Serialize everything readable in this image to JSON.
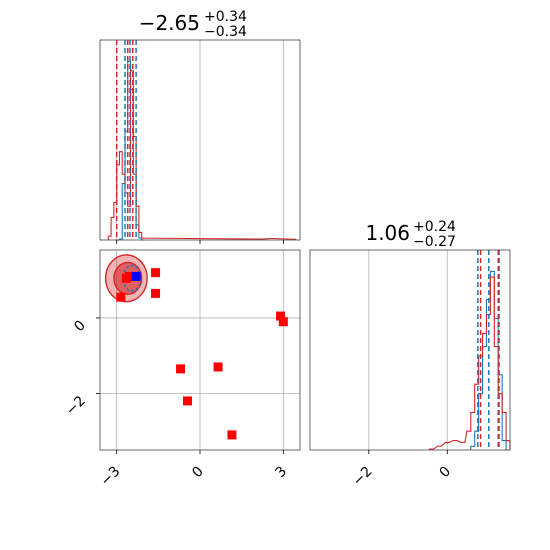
{
  "colors": {
    "blue": "#1f77b4",
    "red": "#d62728",
    "marker": "#ff0000",
    "truth": "#0000ff"
  },
  "chart_data": [
    {
      "type": "histogram",
      "panel": "top-left",
      "title": {
        "base": "−2.65",
        "sup": "+0.34",
        "sub": "−0.34"
      },
      "xlim": [
        -3.6,
        3.6
      ],
      "grid": true,
      "xticks": [
        -3,
        0,
        3
      ],
      "series": [
        {
          "name": "",
          "color": "blue",
          "bins": [
            [
              -2.95,
              0
            ],
            [
              -2.85,
              0.005
            ],
            [
              -2.75,
              0.3
            ],
            [
              -2.65,
              0.58
            ],
            [
              -2.55,
              0.95
            ],
            [
              -2.45,
              0.8
            ],
            [
              -2.35,
              0.35
            ],
            [
              -2.25,
              0.08
            ],
            [
              -2.15,
              0.01
            ],
            [
              -2.05,
              0
            ]
          ]
        },
        {
          "name": "",
          "color": "red",
          "bins": [
            [
              -3.25,
              0.02
            ],
            [
              -3.15,
              0.12
            ],
            [
              -3.05,
              0.2
            ],
            [
              -2.95,
              0.4
            ],
            [
              -2.85,
              0.47
            ],
            [
              -2.75,
              0.35
            ],
            [
              -2.65,
              0.25
            ],
            [
              -2.55,
              0.18
            ],
            [
              -2.45,
              0.9
            ],
            [
              -2.35,
              0.55
            ],
            [
              -2.25,
              0.18
            ],
            [
              -2.15,
              0.04
            ],
            [
              -2.05,
              0.01
            ],
            [
              2.2,
              0.005
            ],
            [
              2.6,
              0.008
            ],
            [
              3.0,
              0.006
            ],
            [
              3.4,
              0.004
            ]
          ]
        }
      ],
      "vlines": [
        {
          "x": -3.0,
          "color": "red"
        },
        {
          "x": -2.6,
          "color": "red"
        },
        {
          "x": -2.42,
          "color": "red"
        },
        {
          "x": -2.7,
          "color": "blue"
        },
        {
          "x": -2.52,
          "color": "blue"
        },
        {
          "x": -2.3,
          "color": "blue"
        }
      ]
    },
    {
      "type": "scatter",
      "panel": "bottom-left",
      "xlim": [
        -3.6,
        3.6
      ],
      "ylim": [
        -3.5,
        1.8
      ],
      "grid": true,
      "xticks": [
        -3,
        0,
        3
      ],
      "yticks": [
        -2,
        0
      ],
      "xticklabels": [
        "−3",
        "0",
        "3"
      ],
      "yticklabels": [
        "−2",
        "0"
      ],
      "markers": [
        {
          "x": -2.85,
          "y": 0.55,
          "color": "marker"
        },
        {
          "x": -2.65,
          "y": 1.05,
          "color": "marker"
        },
        {
          "x": -2.55,
          "y": 1.1,
          "color": "marker"
        },
        {
          "x": -2.3,
          "y": 1.1,
          "color": "marker"
        },
        {
          "x": -1.6,
          "y": 1.2,
          "color": "marker"
        },
        {
          "x": -1.6,
          "y": 0.65,
          "color": "marker"
        },
        {
          "x": -0.7,
          "y": -1.35,
          "color": "marker"
        },
        {
          "x": -0.45,
          "y": -2.2,
          "color": "marker"
        },
        {
          "x": 0.65,
          "y": -1.3,
          "color": "marker"
        },
        {
          "x": 1.15,
          "y": -3.1,
          "color": "marker"
        },
        {
          "x": 2.9,
          "y": 0.05,
          "color": "marker"
        },
        {
          "x": 3.0,
          "y": -0.1,
          "color": "marker"
        },
        {
          "x": -2.3,
          "y": 1.1,
          "color": "truth"
        }
      ],
      "contours": [
        {
          "color": "red",
          "cx": -2.65,
          "cy": 1.05,
          "rx": 0.75,
          "ry": 0.62,
          "fill": 0.35
        },
        {
          "color": "red",
          "cx": -2.6,
          "cy": 1.05,
          "rx": 0.5,
          "ry": 0.42,
          "fill": 0.6
        },
        {
          "color": "blue",
          "cx": -2.45,
          "cy": 1.05,
          "rx": 0.32,
          "ry": 0.34,
          "fill": 0.0
        }
      ]
    },
    {
      "type": "histogram",
      "panel": "bottom-right",
      "title": {
        "base": "1.06",
        "sup": "+0.24",
        "sub": "−0.27"
      },
      "xlim": [
        -3.5,
        1.6
      ],
      "grid": true,
      "xticks": [
        -2,
        0
      ],
      "xticklabels": [
        "−2",
        "0"
      ],
      "series": [
        {
          "name": "",
          "color": "blue",
          "bins": [
            [
              0.65,
              0.02
            ],
            [
              0.75,
              0.1
            ],
            [
              0.85,
              0.3
            ],
            [
              0.95,
              0.55
            ],
            [
              1.05,
              0.8
            ],
            [
              1.15,
              0.95
            ],
            [
              1.25,
              0.7
            ],
            [
              1.35,
              0.4
            ],
            [
              1.45,
              0.05
            ],
            [
              1.55,
              0
            ]
          ]
        },
        {
          "name": "",
          "color": "red",
          "bins": [
            [
              -0.4,
              0.005
            ],
            [
              -0.2,
              0.02
            ],
            [
              0.0,
              0.04
            ],
            [
              0.2,
              0.05
            ],
            [
              0.4,
              0.04
            ],
            [
              0.55,
              0.1
            ],
            [
              0.65,
              0.2
            ],
            [
              0.75,
              0.35
            ],
            [
              0.85,
              0.5
            ],
            [
              0.95,
              0.62
            ],
            [
              1.05,
              0.72
            ],
            [
              1.15,
              0.92
            ],
            [
              1.25,
              0.55
            ],
            [
              1.35,
              0.3
            ],
            [
              1.45,
              0.2
            ],
            [
              1.55,
              0.05
            ]
          ]
        }
      ],
      "vlines": [
        {
          "x": 0.78,
          "color": "blue"
        },
        {
          "x": 1.06,
          "color": "blue"
        },
        {
          "x": 1.3,
          "color": "blue"
        },
        {
          "x": 0.85,
          "color": "red"
        },
        {
          "x": 1.32,
          "color": "red"
        }
      ]
    }
  ],
  "labels": {
    "top_title_base": "−2.65",
    "top_title_sup": "+0.34",
    "top_title_sub": "−0.34",
    "right_title_base": "1.06",
    "right_title_sup": "+0.24",
    "right_title_sub": "−0.27",
    "bl_x_ticks": [
      "−3",
      "0",
      "3"
    ],
    "bl_y_ticks": [
      "−2",
      "0"
    ],
    "br_x_ticks": [
      "−2",
      "0"
    ]
  }
}
